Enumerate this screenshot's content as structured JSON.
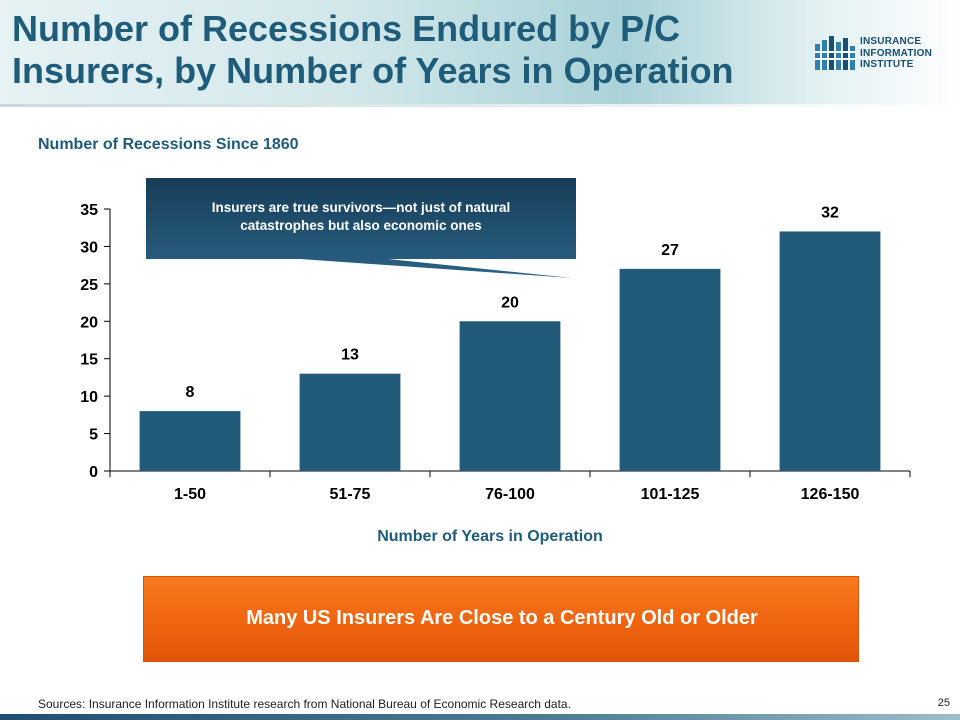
{
  "slide": {
    "title_line1": "Number of Recessions Endured by P/C",
    "title_line2": "Insurers, by Number of Years in Operation",
    "subtitle": "Number of Recessions Since 1860",
    "page_number": "25"
  },
  "logo": {
    "line1": "INSURANCE",
    "line2": "INFORMATION",
    "line3": "INSTITUTE"
  },
  "callout": {
    "line1": "Insurers are true survivors—not just of natural",
    "line2": "catastrophes but also economic ones"
  },
  "banner": {
    "text": "Many US Insurers Are Close to a Century Old or Older"
  },
  "footer": {
    "sources": "Sources: Insurance Information Institute research from National Bureau of Economic Research data."
  },
  "colors": {
    "title": "#1f5c7a",
    "bar": "#225a7a",
    "callout": "#1e4d6c",
    "banner": "#f0640f"
  },
  "chart_data": {
    "type": "bar",
    "categories": [
      "1-50",
      "51-75",
      "76-100",
      "101-125",
      "126-150"
    ],
    "values": [
      8,
      13,
      20,
      27,
      32
    ],
    "data_labels": [
      "8",
      "13",
      "20",
      "27",
      "32"
    ],
    "title": "Number of Recessions Since 1860",
    "xlabel": "Number of Years in Operation",
    "ylabel": "",
    "ylim": [
      0,
      35
    ],
    "yticks": [
      0,
      5,
      10,
      15,
      20,
      25,
      30,
      35
    ],
    "grid": false,
    "legend": "none"
  }
}
